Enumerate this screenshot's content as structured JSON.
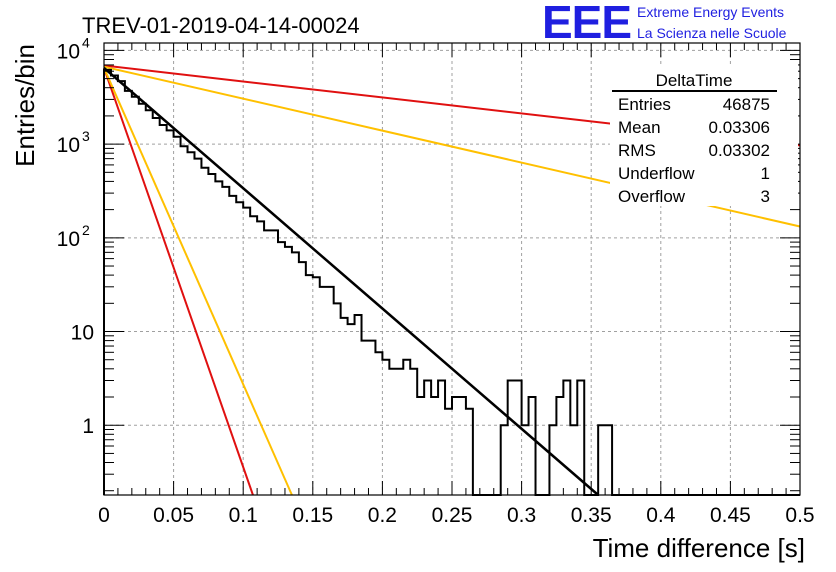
{
  "chart_data": {
    "type": "histogram",
    "title": "TREV-01-2019-04-14-00024",
    "xlabel": "Time difference [s]",
    "ylabel": "Entries/bin",
    "xlim": [
      0,
      0.5
    ],
    "ylim": [
      0.18,
      12000
    ],
    "log_y": true,
    "grid": true,
    "x_ticks": [
      "0",
      "0.05",
      "0.1",
      "0.15",
      "0.2",
      "0.25",
      "0.3",
      "0.35",
      "0.4",
      "0.45",
      "0.5"
    ],
    "x_tick_values": [
      0,
      0.05,
      0.1,
      0.15,
      0.2,
      0.25,
      0.3,
      0.35,
      0.4,
      0.45,
      0.5
    ],
    "y_ticks": [
      {
        "value": 1,
        "base": "1",
        "exp": ""
      },
      {
        "value": 10,
        "base": "10",
        "exp": ""
      },
      {
        "value": 100,
        "base": "10",
        "exp": "2"
      },
      {
        "value": 1000,
        "base": "10",
        "exp": "3"
      },
      {
        "value": 10000,
        "base": "10",
        "exp": "4"
      }
    ],
    "histogram": {
      "name": "DeltaTime",
      "bin_width": 0.005,
      "x_start": 0,
      "color": "#000000",
      "values": [
        6200,
        5400,
        4700,
        3700,
        3200,
        2700,
        2300,
        1900,
        1600,
        1400,
        1200,
        950,
        820,
        700,
        560,
        480,
        400,
        350,
        280,
        240,
        210,
        170,
        150,
        120,
        120,
        90,
        80,
        70,
        55,
        40,
        38,
        30,
        30,
        20,
        14,
        12,
        15,
        8,
        8,
        6,
        5,
        4,
        4,
        5,
        4,
        2,
        3,
        2,
        3,
        1.5,
        2,
        2,
        1.5,
        0,
        0,
        0,
        0,
        1,
        3,
        3,
        1,
        2,
        0,
        0,
        1,
        2,
        3,
        1,
        3,
        0,
        0,
        1,
        1,
        0,
        0,
        0,
        0,
        0,
        0,
        0,
        0,
        0,
        0,
        0,
        0,
        0,
        0,
        0,
        0,
        0,
        0,
        0,
        0,
        0,
        0,
        0,
        0,
        0,
        0,
        0
      ]
    },
    "fit_lines": [
      {
        "color": "#000000",
        "x": [
          0,
          0.355
        ],
        "y": [
          6500,
          0.18
        ]
      },
      {
        "color": "#e01010",
        "x": [
          0,
          0.5
        ],
        "y": [
          6900,
          970
        ]
      },
      {
        "color": "#ffc000",
        "x": [
          0,
          0.5
        ],
        "y": [
          6700,
          132
        ]
      },
      {
        "color": "#e01010",
        "x": [
          0,
          0.107
        ],
        "y": [
          6500,
          0.18
        ]
      },
      {
        "color": "#ffc000",
        "x": [
          0,
          0.135
        ],
        "y": [
          6500,
          0.18
        ]
      }
    ],
    "stats_box": {
      "name": "DeltaTime",
      "rows": [
        {
          "label": "Entries",
          "value": "46875"
        },
        {
          "label": "Mean",
          "value": "0.03306"
        },
        {
          "label": "RMS",
          "value": "0.03302"
        },
        {
          "label": "Underflow",
          "value": "1"
        },
        {
          "label": "Overflow",
          "value": "3"
        }
      ]
    }
  },
  "logo": {
    "mark": "EEE",
    "line1": "Extreme Energy Events",
    "line2": "La Scienza nelle Scuole"
  }
}
